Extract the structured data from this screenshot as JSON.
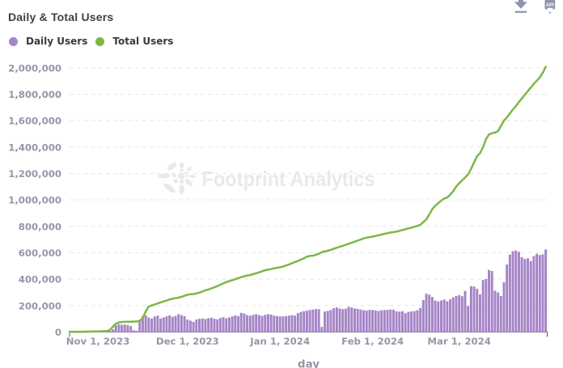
{
  "header": {
    "title": "Daily & Total Users"
  },
  "toolbar": {
    "download_icon": "download-icon",
    "api_icon": "api-icon",
    "api_label": "API"
  },
  "legend": {
    "items": [
      {
        "label": "Daily Users",
        "color": "#a884cb"
      },
      {
        "label": "Total Users",
        "color": "#7db843"
      }
    ]
  },
  "watermark": {
    "text": "Footprint Analytics"
  },
  "chart_data": {
    "type": "bar",
    "title": "Daily & Total Users",
    "xlabel": "day",
    "ylabel": "",
    "ylim": [
      0,
      2000000
    ],
    "y_tick_step": 200000,
    "y_ticks": [
      "0",
      "200,000",
      "400,000",
      "600,000",
      "800,000",
      "1,000,000",
      "1,200,000",
      "1,400,000",
      "1,600,000",
      "1,800,000",
      "2,000,000"
    ],
    "x_ticks": [
      {
        "label": "Nov 1, 2023",
        "day_index": 9
      },
      {
        "label": "Dec 1, 2023",
        "day_index": 39
      },
      {
        "label": "Jan 1, 2024",
        "day_index": 70
      },
      {
        "label": "Feb 1, 2024",
        "day_index": 101
      },
      {
        "label": "Mar 1, 2024",
        "day_index": 130
      }
    ],
    "n_days": 160,
    "start_date": "2023-10-23",
    "end_date": "2024-03-30",
    "grid": "horizontal-dashed",
    "legend_position": "top-left",
    "series": [
      {
        "name": "Daily Users",
        "type": "bar",
        "color": "#a584c7",
        "values": [
          400,
          600,
          800,
          1000,
          1200,
          1500,
          1800,
          2000,
          2200,
          2600,
          3000,
          3400,
          5000,
          8000,
          20000,
          50000,
          59000,
          55000,
          57000,
          53000,
          45000,
          13000,
          9000,
          94000,
          118000,
          126000,
          110000,
          102000,
          118000,
          124000,
          102000,
          110000,
          118000,
          126000,
          115000,
          121000,
          135000,
          128000,
          120000,
          94000,
          86000,
          77000,
          94000,
          100000,
          102000,
          98000,
          104000,
          108000,
          100000,
          96000,
          106000,
          112000,
          104000,
          110000,
          118000,
          126000,
          120000,
          145000,
          140000,
          128000,
          124000,
          130000,
          135000,
          128000,
          122000,
          130000,
          135000,
          132000,
          124000,
          121000,
          118000,
          118000,
          120000,
          124000,
          127000,
          124000,
          143000,
          152000,
          158000,
          161000,
          167000,
          170000,
          173000,
          173000,
          39000,
          155000,
          160000,
          167000,
          180000,
          186000,
          178000,
          173000,
          176000,
          190000,
          186000,
          178000,
          175000,
          170000,
          165000,
          163000,
          167000,
          167000,
          163000,
          160000,
          165000,
          166000,
          168000,
          170000,
          168000,
          156000,
          154000,
          156000,
          143000,
          152000,
          156000,
          158000,
          165000,
          182000,
          242000,
          290000,
          283000,
          265000,
          238000,
          231000,
          238000,
          246000,
          232000,
          248000,
          262000,
          272000,
          280000,
          271000,
          311000,
          198000,
          347000,
          344000,
          327000,
          286000,
          393000,
          401000,
          470000,
          462000,
          313000,
          300000,
          272000,
          376000,
          511000,
          586000,
          612000,
          617000,
          607000,
          567000,
          553000,
          558000,
          537000,
          575000,
          592000,
          583000,
          587000,
          625000
        ]
      },
      {
        "name": "Total Users",
        "type": "line",
        "color": "#7db843",
        "values": [
          1000,
          1400,
          1800,
          2000,
          2400,
          2800,
          3200,
          3800,
          4400,
          5000,
          5600,
          6000,
          7000,
          15000,
          40000,
          62000,
          72000,
          76000,
          77000,
          77500,
          78000,
          79000,
          80000,
          82000,
          105000,
          155000,
          193000,
          201000,
          208000,
          216000,
          224000,
          232000,
          238000,
          246000,
          252000,
          256000,
          260000,
          266000,
          274000,
          282000,
          285000,
          288000,
          292000,
          298000,
          306000,
          315000,
          322000,
          330000,
          338000,
          348000,
          358000,
          368000,
          378000,
          385000,
          392000,
          400000,
          408000,
          415000,
          422000,
          428000,
          431000,
          438000,
          445000,
          452000,
          460000,
          468000,
          472000,
          476000,
          482000,
          486000,
          490000,
          496000,
          503000,
          512000,
          520000,
          530000,
          538000,
          548000,
          558000,
          570000,
          576000,
          578000,
          584000,
          592000,
          604000,
          610000,
          616000,
          622000,
          630000,
          638000,
          645000,
          652000,
          660000,
          668000,
          676000,
          684000,
          692000,
          700000,
          708000,
          714000,
          718000,
          722000,
          727000,
          732000,
          738000,
          743000,
          748000,
          753000,
          756000,
          760000,
          766000,
          772000,
          778000,
          784000,
          790000,
          797000,
          803000,
          812000,
          832000,
          852000,
          890000,
          930000,
          956000,
          975000,
          995000,
          1010000,
          1018000,
          1040000,
          1065000,
          1100000,
          1126000,
          1148000,
          1170000,
          1194000,
          1235000,
          1285000,
          1330000,
          1355000,
          1400000,
          1460000,
          1495000,
          1505000,
          1510000,
          1520000,
          1560000,
          1600000,
          1625000,
          1655000,
          1685000,
          1710000,
          1740000,
          1768000,
          1795000,
          1823000,
          1850000,
          1878000,
          1902000,
          1928000,
          1962000,
          2008000
        ]
      }
    ]
  },
  "colors": {
    "background": "#ffffff",
    "title_text": "#414141",
    "legend_text": "#3d3d3d",
    "axis_label": "#9696a8",
    "axis_line": "#55565a",
    "gridline": "#e5e5e8",
    "watermark": "#e8e9ea",
    "toolbar_icon": "#8f94ab"
  }
}
